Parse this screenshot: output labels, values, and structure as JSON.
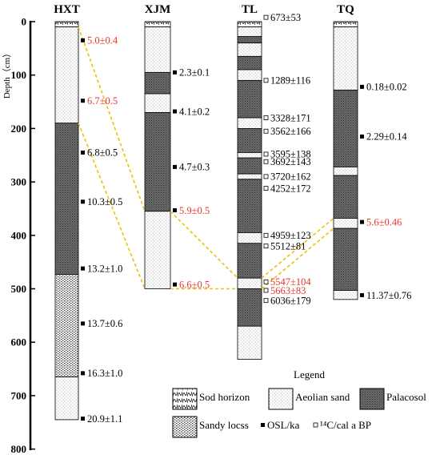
{
  "axis": {
    "label": "Depth（cm）",
    "ticks": [
      "0",
      "100",
      "200",
      "300",
      "400",
      "500",
      "600",
      "700",
      "800"
    ],
    "tick_values": [
      0,
      100,
      200,
      300,
      400,
      500,
      600,
      700,
      800
    ]
  },
  "colors": {
    "red": "#e8372a",
    "correlation": "#f0c000",
    "black": "#000000"
  },
  "columns": [
    {
      "id": "hxt",
      "name": "HXT",
      "layers": [
        {
          "type": "sod",
          "top": 0,
          "bottom": 10
        },
        {
          "type": "aeolian",
          "top": 10,
          "bottom": 190
        },
        {
          "type": "palaeosol",
          "top": 190,
          "bottom": 473
        },
        {
          "type": "loess",
          "top": 473,
          "bottom": 665
        },
        {
          "type": "aeolian",
          "top": 665,
          "bottom": 745
        }
      ],
      "samples": [
        {
          "depth": 35,
          "label": "5.0±0.4",
          "kind": "osl",
          "red": true
        },
        {
          "depth": 148,
          "label": "6.7±0.5",
          "kind": "osl",
          "red": true
        },
        {
          "depth": 245,
          "label": "6.8±0.5",
          "kind": "osl",
          "red": false
        },
        {
          "depth": 337,
          "label": "10.3±0.5",
          "kind": "osl",
          "red": false
        },
        {
          "depth": 462,
          "label": "13.2±1.0",
          "kind": "osl",
          "red": false
        },
        {
          "depth": 565,
          "label": "13.7±0.6",
          "kind": "osl",
          "red": false
        },
        {
          "depth": 658,
          "label": "16.3±1.0",
          "kind": "osl",
          "red": false
        },
        {
          "depth": 743,
          "label": "20.9±1.1",
          "kind": "osl",
          "red": false
        }
      ]
    },
    {
      "id": "xjm",
      "name": "XJM",
      "layers": [
        {
          "type": "sod",
          "top": 0,
          "bottom": 10
        },
        {
          "type": "aeolian",
          "top": 10,
          "bottom": 95
        },
        {
          "type": "palaeosol",
          "top": 95,
          "bottom": 135
        },
        {
          "type": "aeolian",
          "top": 135,
          "bottom": 170
        },
        {
          "type": "palaeosol",
          "top": 170,
          "bottom": 355
        },
        {
          "type": "aeolian",
          "top": 355,
          "bottom": 500
        }
      ],
      "samples": [
        {
          "depth": 95,
          "label": "2.3±0.1",
          "kind": "osl",
          "red": false
        },
        {
          "depth": 168,
          "label": "4.1±0.2",
          "kind": "osl",
          "red": false
        },
        {
          "depth": 272,
          "label": "4.7±0.3",
          "kind": "osl",
          "red": false
        },
        {
          "depth": 353,
          "label": "5.9±0.5",
          "kind": "osl",
          "red": true
        },
        {
          "depth": 492,
          "label": "6.6±0.5",
          "kind": "osl",
          "red": true
        }
      ]
    },
    {
      "id": "tl",
      "name": "TL",
      "layers": [
        {
          "type": "sod",
          "top": 0,
          "bottom": 10
        },
        {
          "type": "aeolian",
          "top": 10,
          "bottom": 28
        },
        {
          "type": "palaeosol",
          "top": 28,
          "bottom": 40
        },
        {
          "type": "aeolian",
          "top": 40,
          "bottom": 65
        },
        {
          "type": "palaeosol",
          "top": 65,
          "bottom": 90
        },
        {
          "type": "aeolian",
          "top": 90,
          "bottom": 110
        },
        {
          "type": "palaeosol",
          "top": 110,
          "bottom": 180
        },
        {
          "type": "aeolian",
          "top": 180,
          "bottom": 200
        },
        {
          "type": "palaeosol",
          "top": 200,
          "bottom": 245
        },
        {
          "type": "aeolian",
          "top": 245,
          "bottom": 255
        },
        {
          "type": "palaeosol",
          "top": 255,
          "bottom": 285
        },
        {
          "type": "aeolian",
          "top": 285,
          "bottom": 295
        },
        {
          "type": "palaeosol",
          "top": 295,
          "bottom": 395
        },
        {
          "type": "aeolian",
          "top": 395,
          "bottom": 415
        },
        {
          "type": "palaeosol",
          "top": 415,
          "bottom": 480
        },
        {
          "type": "aeolian",
          "top": 480,
          "bottom": 500
        },
        {
          "type": "palaeosol",
          "top": 500,
          "bottom": 570
        },
        {
          "type": "aeolian",
          "top": 570,
          "bottom": 632
        }
      ],
      "samples": [
        {
          "depth": -8,
          "label": "673±53",
          "kind": "c14",
          "red": false
        },
        {
          "depth": 110,
          "label": "1289±116",
          "kind": "c14",
          "red": false
        },
        {
          "depth": 180,
          "label": "3328±171",
          "kind": "c14",
          "red": false
        },
        {
          "depth": 205,
          "label": "3562±166",
          "kind": "c14",
          "red": false
        },
        {
          "depth": 248,
          "label": "3595±138",
          "kind": "c14",
          "red": false
        },
        {
          "depth": 262,
          "label": "3692±143",
          "kind": "c14",
          "red": false
        },
        {
          "depth": 290,
          "label": "3720±162",
          "kind": "c14",
          "red": false
        },
        {
          "depth": 312,
          "label": "4252±172",
          "kind": "c14",
          "red": false
        },
        {
          "depth": 400,
          "label": "4959±123",
          "kind": "c14",
          "red": false
        },
        {
          "depth": 420,
          "label": "5512±81",
          "kind": "c14",
          "red": false
        },
        {
          "depth": 487,
          "label": "5547±104",
          "kind": "c14",
          "red": true
        },
        {
          "depth": 503,
          "label": "5663±83",
          "kind": "c14",
          "red": true
        },
        {
          "depth": 522,
          "label": "6036±179",
          "kind": "c14",
          "red": false
        }
      ]
    },
    {
      "id": "tq",
      "name": "TQ",
      "layers": [
        {
          "type": "sod",
          "top": 0,
          "bottom": 10
        },
        {
          "type": "aeolian",
          "top": 10,
          "bottom": 128
        },
        {
          "type": "palaeosol",
          "top": 128,
          "bottom": 272
        },
        {
          "type": "aeolian",
          "top": 272,
          "bottom": 288
        },
        {
          "type": "palaeosol",
          "top": 288,
          "bottom": 368
        },
        {
          "type": "aeolian",
          "top": 368,
          "bottom": 387
        },
        {
          "type": "palaeosol",
          "top": 387,
          "bottom": 503
        },
        {
          "type": "aeolian",
          "top": 503,
          "bottom": 520
        }
      ],
      "samples": [
        {
          "depth": 122,
          "label": "0.18±0.02",
          "kind": "osl",
          "red": false
        },
        {
          "depth": 215,
          "label": "2.29±0.14",
          "kind": "osl",
          "red": false
        },
        {
          "depth": 375,
          "label": "5.6±0.46",
          "kind": "osl",
          "red": true
        },
        {
          "depth": 512,
          "label": "11.37±0.76",
          "kind": "osl",
          "red": false
        }
      ]
    }
  ],
  "correlations": [
    {
      "from": [
        0,
        10
      ],
      "to": [
        1,
        355
      ]
    },
    {
      "from": [
        0,
        190
      ],
      "to": [
        1,
        500
      ]
    },
    {
      "from": [
        1,
        355
      ],
      "to": [
        2,
        480
      ]
    },
    {
      "from": [
        1,
        500
      ],
      "to": [
        2,
        500
      ]
    },
    {
      "from": [
        2,
        480
      ],
      "to": [
        3,
        368
      ]
    },
    {
      "from": [
        2,
        500
      ],
      "to": [
        3,
        387
      ]
    }
  ],
  "legend": {
    "title": "Legend",
    "sod": "Sod horizon",
    "aeolian": "Aeolian sand",
    "palaeosol": "Palacosol",
    "loess": "Sandy locss",
    "osl": "OSL/ka",
    "c14": "¹⁴C/cal a BP"
  }
}
